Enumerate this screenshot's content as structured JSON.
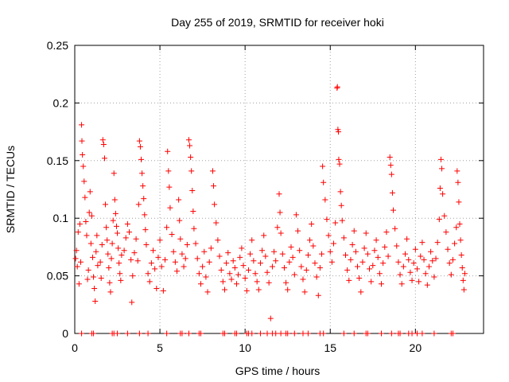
{
  "chart_data": {
    "type": "scatter",
    "title": "Day 255 of 2019, SRMTID for receiver hoki",
    "xlabel": "GPS time / hours",
    "ylabel": "SRMTID / TECUs",
    "xlim": [
      0,
      24
    ],
    "ylim": [
      0,
      0.25
    ],
    "xticks": [
      0,
      5,
      10,
      15,
      20
    ],
    "xtick_labels": [
      "0",
      "5",
      "10",
      "15",
      "20"
    ],
    "yticks": [
      0,
      0.05,
      0.1,
      0.15,
      0.2,
      0.25
    ],
    "ytick_labels": [
      "0",
      "0.05",
      "0.1",
      "0.15",
      "0.2",
      "0.25"
    ],
    "grid": true,
    "marker": "+",
    "color": "#ff0000",
    "series": [
      {
        "points": [
          [
            0.05,
            0.065
          ],
          [
            0.1,
            0.072
          ],
          [
            0.15,
            0.058
          ],
          [
            0.2,
            0.088
          ],
          [
            0.25,
            0.043
          ],
          [
            0.3,
            0.095
          ],
          [
            0.35,
            0.062
          ],
          [
            0.4,
            0.181
          ],
          [
            0.42,
            0.167
          ],
          [
            0.45,
            0.155
          ],
          [
            0.5,
            0.145
          ],
          [
            0.55,
            0.132
          ],
          [
            0.6,
            0.118
          ],
          [
            0.65,
            0.097
          ],
          [
            0.7,
            0.085
          ],
          [
            0.75,
            0.047
          ],
          [
            0.8,
            0.055
          ],
          [
            0.85,
            0.105
          ],
          [
            0.9,
            0.123
          ],
          [
            0.95,
            0.078
          ],
          [
            1.0,
            0.102
          ],
          [
            1.05,
            0.066
          ],
          [
            1.1,
            0.049
          ],
          [
            1.15,
            0.039
          ],
          [
            1.2,
            0.028
          ],
          [
            1.25,
            0.071
          ],
          [
            1.3,
            0.085
          ],
          [
            1.35,
            0.059
          ],
          [
            1.5,
            0.062
          ],
          [
            1.55,
            0.048
          ],
          [
            1.6,
            0.077
          ],
          [
            1.65,
            0.168
          ],
          [
            1.7,
            0.164
          ],
          [
            1.75,
            0.152
          ],
          [
            1.8,
            0.112
          ],
          [
            1.85,
            0.092
          ],
          [
            1.9,
            0.081
          ],
          [
            1.95,
            0.069
          ],
          [
            2.0,
            0.057
          ],
          [
            2.05,
            0.044
          ],
          [
            2.1,
            0.036
          ],
          [
            2.15,
            0.065
          ],
          [
            2.2,
            0.078
          ],
          [
            2.25,
            0.098
          ],
          [
            2.3,
            0.139
          ],
          [
            2.35,
            0.116
          ],
          [
            2.4,
            0.104
          ],
          [
            2.45,
            0.093
          ],
          [
            2.5,
            0.087
          ],
          [
            2.55,
            0.074
          ],
          [
            2.6,
            0.061
          ],
          [
            2.65,
            0.052
          ],
          [
            2.7,
            0.046
          ],
          [
            2.75,
            0.068
          ],
          [
            2.9,
            0.072
          ],
          [
            3.0,
            0.083
          ],
          [
            3.1,
            0.095
          ],
          [
            3.2,
            0.088
          ],
          [
            3.3,
            0.064
          ],
          [
            3.35,
            0.027
          ],
          [
            3.4,
            0.05
          ],
          [
            3.5,
            0.07
          ],
          [
            3.6,
            0.082
          ],
          [
            3.7,
            0.063
          ],
          [
            3.75,
            0.112
          ],
          [
            3.8,
            0.167
          ],
          [
            3.85,
            0.162
          ],
          [
            3.9,
            0.151
          ],
          [
            3.95,
            0.139
          ],
          [
            4.0,
            0.128
          ],
          [
            4.05,
            0.117
          ],
          [
            4.1,
            0.103
          ],
          [
            4.15,
            0.09
          ],
          [
            4.2,
            0.077
          ],
          [
            4.3,
            0.052
          ],
          [
            4.4,
            0.045
          ],
          [
            4.5,
            0.061
          ],
          [
            4.6,
            0.072
          ],
          [
            4.7,
            0.056
          ],
          [
            4.8,
            0.039
          ],
          [
            4.9,
            0.066
          ],
          [
            5.0,
            0.081
          ],
          [
            5.1,
            0.058
          ],
          [
            5.2,
            0.037
          ],
          [
            5.3,
            0.064
          ],
          [
            5.4,
            0.092
          ],
          [
            5.45,
            0.158
          ],
          [
            5.5,
            0.141
          ],
          [
            5.55,
            0.127
          ],
          [
            5.6,
            0.109
          ],
          [
            5.7,
            0.086
          ],
          [
            5.8,
            0.071
          ],
          [
            5.9,
            0.062
          ],
          [
            6.0,
            0.054
          ],
          [
            6.1,
            0.116
          ],
          [
            6.15,
            0.098
          ],
          [
            6.2,
            0.082
          ],
          [
            6.3,
            0.069
          ],
          [
            6.4,
            0.058
          ],
          [
            6.5,
            0.065
          ],
          [
            6.6,
            0.077
          ],
          [
            6.7,
            0.168
          ],
          [
            6.75,
            0.163
          ],
          [
            6.8,
            0.153
          ],
          [
            6.85,
            0.141
          ],
          [
            6.9,
            0.124
          ],
          [
            6.95,
            0.106
          ],
          [
            7.0,
            0.091
          ],
          [
            7.1,
            0.078
          ],
          [
            7.2,
            0.065
          ],
          [
            7.3,
            0.052
          ],
          [
            7.4,
            0.043
          ],
          [
            7.5,
            0.058
          ],
          [
            7.6,
            0.071
          ],
          [
            7.7,
            0.049
          ],
          [
            7.8,
            0.036
          ],
          [
            7.9,
            0.062
          ],
          [
            8.0,
            0.074
          ],
          [
            8.1,
            0.141
          ],
          [
            8.15,
            0.128
          ],
          [
            8.2,
            0.112
          ],
          [
            8.3,
            0.096
          ],
          [
            8.4,
            0.081
          ],
          [
            8.5,
            0.067
          ],
          [
            8.6,
            0.055
          ],
          [
            8.7,
            0.045
          ],
          [
            8.8,
            0.038
          ],
          [
            8.9,
            0.061
          ],
          [
            9.0,
            0.07
          ],
          [
            9.1,
            0.052
          ],
          [
            9.2,
            0.047
          ],
          [
            9.3,
            0.063
          ],
          [
            9.4,
            0.057
          ],
          [
            9.5,
            0.043
          ],
          [
            9.6,
            0.051
          ],
          [
            9.7,
            0.066
          ],
          [
            9.8,
            0.074
          ],
          [
            9.9,
            0.059
          ],
          [
            10.0,
            0.048
          ],
          [
            10.1,
            0.037
          ],
          [
            10.2,
            0.055
          ],
          [
            10.3,
            0.069
          ],
          [
            10.4,
            0.081
          ],
          [
            10.5,
            0.063
          ],
          [
            10.6,
            0.052
          ],
          [
            10.7,
            0.045
          ],
          [
            10.8,
            0.038
          ],
          [
            10.9,
            0.061
          ],
          [
            11.0,
            0.072
          ],
          [
            11.1,
            0.085
          ],
          [
            11.2,
            0.067
          ],
          [
            11.3,
            0.053
          ],
          [
            11.4,
            0.044
          ],
          [
            11.5,
            0.013
          ],
          [
            11.6,
            0.058
          ],
          [
            11.7,
            0.071
          ],
          [
            11.8,
            0.063
          ],
          [
            11.9,
            0.092
          ],
          [
            12.0,
            0.121
          ],
          [
            12.05,
            0.105
          ],
          [
            12.1,
            0.087
          ],
          [
            12.2,
            0.069
          ],
          [
            12.3,
            0.057
          ],
          [
            12.4,
            0.044
          ],
          [
            12.5,
            0.038
          ],
          [
            12.6,
            0.062
          ],
          [
            12.7,
            0.075
          ],
          [
            12.8,
            0.066
          ],
          [
            12.9,
            0.051
          ],
          [
            13.0,
            0.103
          ],
          [
            13.1,
            0.089
          ],
          [
            13.2,
            0.072
          ],
          [
            13.3,
            0.058
          ],
          [
            13.4,
            0.047
          ],
          [
            13.5,
            0.036
          ],
          [
            13.6,
            0.055
          ],
          [
            13.7,
            0.068
          ],
          [
            13.8,
            0.081
          ],
          [
            13.9,
            0.095
          ],
          [
            14.0,
            0.076
          ],
          [
            14.1,
            0.061
          ],
          [
            14.2,
            0.049
          ],
          [
            14.3,
            0.033
          ],
          [
            14.4,
            0.057
          ],
          [
            14.5,
            0.069
          ],
          [
            14.55,
            0.145
          ],
          [
            14.6,
            0.131
          ],
          [
            14.7,
            0.116
          ],
          [
            14.8,
            0.099
          ],
          [
            14.9,
            0.085
          ],
          [
            15.0,
            0.071
          ],
          [
            15.1,
            0.062
          ],
          [
            15.2,
            0.078
          ],
          [
            15.3,
            0.096
          ],
          [
            15.4,
            0.213
          ],
          [
            15.42,
            0.214
          ],
          [
            15.45,
            0.177
          ],
          [
            15.48,
            0.175
          ],
          [
            15.5,
            0.151
          ],
          [
            15.55,
            0.147
          ],
          [
            15.6,
            0.123
          ],
          [
            15.65,
            0.111
          ],
          [
            15.7,
            0.098
          ],
          [
            15.8,
            0.083
          ],
          [
            15.9,
            0.068
          ],
          [
            16.0,
            0.055
          ],
          [
            16.1,
            0.046
          ],
          [
            16.2,
            0.064
          ],
          [
            16.3,
            0.077
          ],
          [
            16.4,
            0.089
          ],
          [
            16.5,
            0.071
          ],
          [
            16.6,
            0.058
          ],
          [
            16.7,
            0.048
          ],
          [
            16.8,
            0.036
          ],
          [
            16.9,
            0.062
          ],
          [
            17.0,
            0.074
          ],
          [
            17.1,
            0.087
          ],
          [
            17.2,
            0.069
          ],
          [
            17.3,
            0.056
          ],
          [
            17.4,
            0.045
          ],
          [
            17.5,
            0.059
          ],
          [
            17.6,
            0.072
          ],
          [
            17.7,
            0.081
          ],
          [
            17.8,
            0.066
          ],
          [
            17.9,
            0.052
          ],
          [
            18.0,
            0.043
          ],
          [
            18.1,
            0.061
          ],
          [
            18.2,
            0.075
          ],
          [
            18.3,
            0.088
          ],
          [
            18.4,
            0.067
          ],
          [
            18.5,
            0.153
          ],
          [
            18.55,
            0.146
          ],
          [
            18.6,
            0.138
          ],
          [
            18.65,
            0.122
          ],
          [
            18.7,
            0.107
          ],
          [
            18.8,
            0.091
          ],
          [
            18.9,
            0.076
          ],
          [
            19.0,
            0.062
          ],
          [
            19.1,
            0.051
          ],
          [
            19.2,
            0.043
          ],
          [
            19.3,
            0.058
          ],
          [
            19.4,
            0.069
          ],
          [
            19.5,
            0.082
          ],
          [
            19.6,
            0.064
          ],
          [
            19.7,
            0.053
          ],
          [
            19.8,
            0.046
          ],
          [
            19.9,
            0.061
          ],
          [
            20.0,
            0.073
          ],
          [
            20.1,
            0.056
          ],
          [
            20.2,
            0.045
          ],
          [
            20.3,
            0.067
          ],
          [
            20.4,
            0.079
          ],
          [
            20.5,
            0.064
          ],
          [
            20.6,
            0.052
          ],
          [
            20.7,
            0.042
          ],
          [
            20.8,
            0.058
          ],
          [
            20.9,
            0.071
          ],
          [
            21.0,
            0.063
          ],
          [
            21.1,
            0.049
          ],
          [
            21.2,
            0.065
          ],
          [
            21.3,
            0.079
          ],
          [
            21.4,
            0.099
          ],
          [
            21.45,
            0.126
          ],
          [
            21.5,
            0.151
          ],
          [
            21.55,
            0.143
          ],
          [
            21.6,
            0.121
          ],
          [
            21.7,
            0.102
          ],
          [
            21.8,
            0.088
          ],
          [
            21.9,
            0.073
          ],
          [
            22.0,
            0.061
          ],
          [
            22.1,
            0.051
          ],
          [
            22.2,
            0.064
          ],
          [
            22.3,
            0.078
          ],
          [
            22.4,
            0.092
          ],
          [
            22.45,
            0.141
          ],
          [
            22.5,
            0.131
          ],
          [
            22.55,
            0.114
          ],
          [
            22.6,
            0.095
          ],
          [
            22.65,
            0.081
          ],
          [
            22.7,
            0.068
          ],
          [
            22.75,
            0.057
          ],
          [
            22.8,
            0.046
          ],
          [
            22.85,
            0.038
          ],
          [
            22.9,
            0.052
          ]
        ],
        "zero_points": [
          0.4,
          1.0,
          1.1,
          2.2,
          2.3,
          2.5,
          3.1,
          3.8,
          4.3,
          5.4,
          6.2,
          6.3,
          6.7,
          7.3,
          7.4,
          8.7,
          8.8,
          9.4,
          9.5,
          10.1,
          10.2,
          10.4,
          10.9,
          11.3,
          11.6,
          11.8,
          12.1,
          12.4,
          12.5,
          12.9,
          13.4,
          13.7,
          14.4,
          14.6,
          15.8,
          16.4,
          17.1,
          17.2,
          18.0,
          18.6,
          19.0,
          19.1,
          19.6,
          19.8,
          20.1,
          20.4,
          21.1,
          22.1,
          22.2
        ]
      }
    ]
  }
}
